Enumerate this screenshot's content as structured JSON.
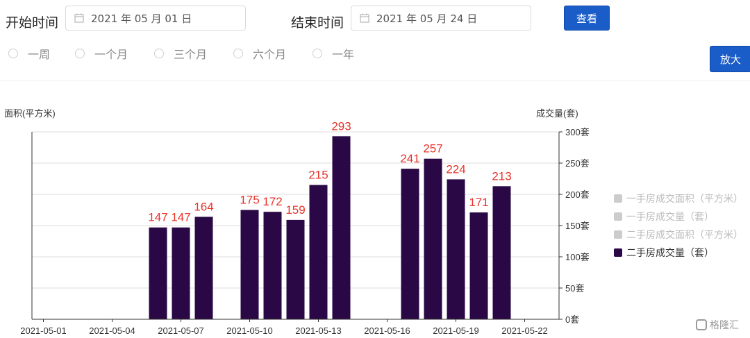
{
  "filters": {
    "start_label": "开始时间",
    "start_value": "2021 年 05 月 01 日",
    "end_label": "结束时间",
    "end_value": "2021 年 05 月 24 日",
    "query_button": "查看",
    "zoom_button": "放大",
    "periods": [
      "一周",
      "一个月",
      "三个月",
      "六个月",
      "一年"
    ]
  },
  "chart_data": {
    "type": "bar",
    "left_axis_label": "面积(平方米)",
    "right_axis_label": "成交量(套)",
    "ylim": [
      0,
      300
    ],
    "y_ticks": [
      "0套",
      "50套",
      "100套",
      "150套",
      "200套",
      "250套",
      "300套"
    ],
    "x_tick_labels": [
      "2021-05-01",
      "2021-05-04",
      "2021-05-07",
      "2021-05-10",
      "2021-05-13",
      "2021-05-16",
      "2021-05-19",
      "2021-05-22"
    ],
    "categories": [
      "2021-05-01",
      "2021-05-02",
      "2021-05-03",
      "2021-05-04",
      "2021-05-05",
      "2021-05-06",
      "2021-05-07",
      "2021-05-08",
      "2021-05-09",
      "2021-05-10",
      "2021-05-11",
      "2021-05-12",
      "2021-05-13",
      "2021-05-14",
      "2021-05-15",
      "2021-05-16",
      "2021-05-17",
      "2021-05-18",
      "2021-05-19",
      "2021-05-20",
      "2021-05-21",
      "2021-05-22",
      "2021-05-23"
    ],
    "series": [
      {
        "name": "二手房成交量（套）",
        "color": "#2a0845",
        "values": [
          null,
          null,
          null,
          null,
          null,
          147,
          147,
          164,
          null,
          175,
          172,
          159,
          215,
          293,
          null,
          null,
          241,
          257,
          224,
          171,
          213,
          null,
          null
        ]
      }
    ],
    "label_color": "#e8332a",
    "legend": [
      {
        "name": "一手房成交面积（平方米）",
        "active": false
      },
      {
        "name": "一手房成交量（套）",
        "active": false
      },
      {
        "name": "二手房成交面积（平方米）",
        "active": false
      },
      {
        "name": "二手房成交量（套）",
        "active": true
      }
    ],
    "grid": true,
    "legend_position": "right"
  },
  "watermark": "格隆汇"
}
